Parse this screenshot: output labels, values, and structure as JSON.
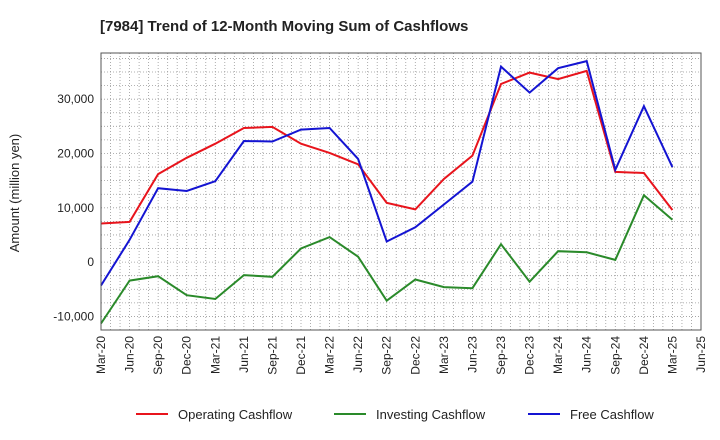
{
  "chart_data": {
    "type": "line",
    "title": "[7984]  Trend of 12-Month Moving Sum of Cashflows",
    "xlabel": "",
    "ylabel": "Amount (million yen)",
    "categories": [
      "Mar-20",
      "Jun-20",
      "Sep-20",
      "Dec-20",
      "Mar-21",
      "Jun-21",
      "Sep-21",
      "Dec-21",
      "Mar-22",
      "Jun-22",
      "Sep-22",
      "Dec-22",
      "Mar-23",
      "Jun-23",
      "Sep-23",
      "Dec-23",
      "Mar-24",
      "Jun-24",
      "Sep-24",
      "Dec-24",
      "Mar-25",
      "Jun-25"
    ],
    "ylim": [
      -12500,
      38500
    ],
    "yticks": [
      -10000,
      0,
      10000,
      20000,
      30000
    ],
    "ytick_labels": [
      "-10,000",
      "0",
      "10,000",
      "20,000",
      "30,000"
    ],
    "grid": true,
    "legend_position": "bottom",
    "series": [
      {
        "name": "Operating Cashflow",
        "color": "#e8141c",
        "values": [
          7100,
          7400,
          16200,
          19200,
          21800,
          24700,
          24900,
          21800,
          20100,
          18000,
          10900,
          9700,
          15300,
          19600,
          32800,
          34900,
          33700,
          35200,
          16600,
          16400,
          9600,
          null
        ]
      },
      {
        "name": "Investing Cashflow",
        "color": "#2a8a2a",
        "values": [
          -11300,
          -3400,
          -2600,
          -6100,
          -6800,
          -2400,
          -2700,
          2500,
          4600,
          1000,
          -7100,
          -3200,
          -4600,
          -4800,
          3300,
          -3600,
          2000,
          1800,
          400,
          12300,
          7800,
          null
        ]
      },
      {
        "name": "Free Cashflow",
        "color": "#1414d2",
        "values": [
          -4300,
          4100,
          13600,
          13100,
          14900,
          22300,
          22200,
          24400,
          24700,
          19000,
          3800,
          6400,
          10600,
          14800,
          36000,
          31200,
          35700,
          37000,
          17000,
          28700,
          17500,
          null
        ]
      }
    ]
  }
}
